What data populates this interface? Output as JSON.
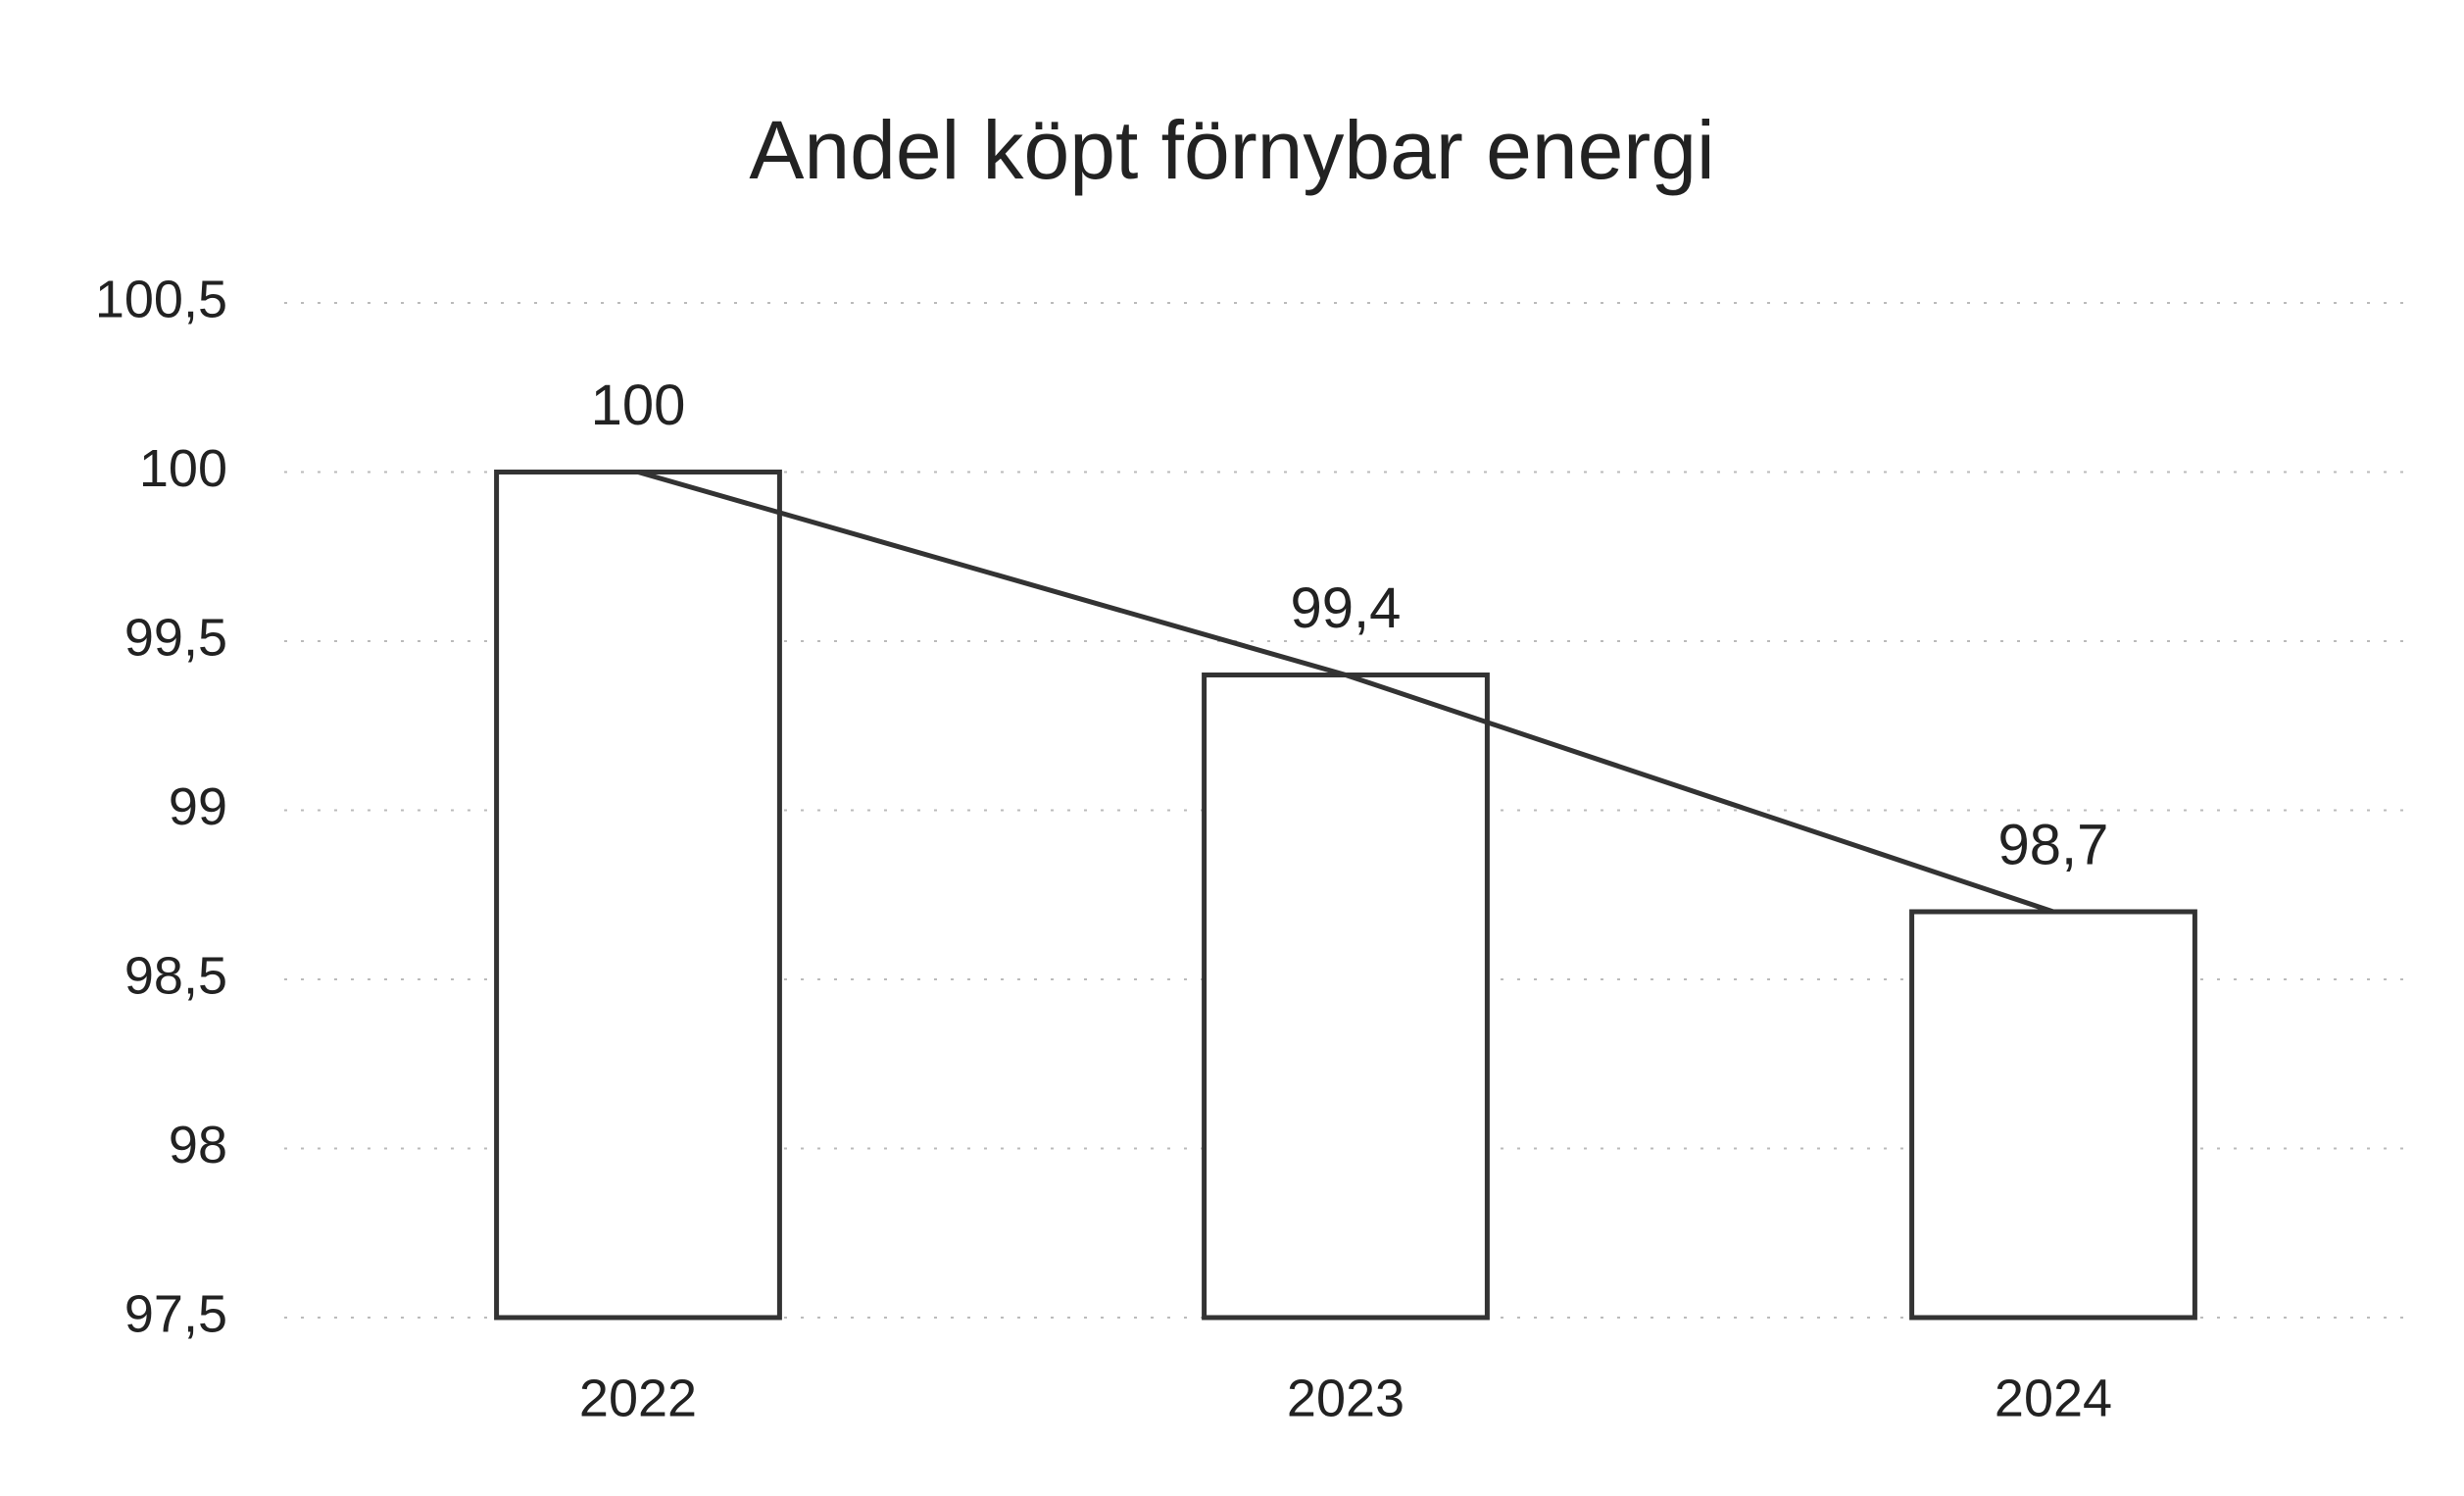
{
  "chart_data": {
    "type": "bar",
    "title": "Andel köpt förnybar energi",
    "categories": [
      "2022",
      "2023",
      "2024"
    ],
    "series": [
      {
        "type": "bar",
        "color": "#333333",
        "values": [
          100,
          99.4,
          98.7
        ],
        "value_labels": [
          "100",
          "99,4",
          "98,7"
        ]
      },
      {
        "type": "line",
        "color": "#333333",
        "values": [
          100,
          99.4,
          98.7
        ]
      }
    ],
    "ylim": [
      97.5,
      100.5
    ],
    "yticks": [
      {
        "value": 97.5,
        "label": "97,5"
      },
      98,
      {
        "value": 98.5,
        "label": "98,5"
      },
      99,
      {
        "value": 99.5,
        "label": "99,5"
      },
      100,
      {
        "value": 100.5,
        "label": "100,5"
      }
    ],
    "grid": true
  }
}
